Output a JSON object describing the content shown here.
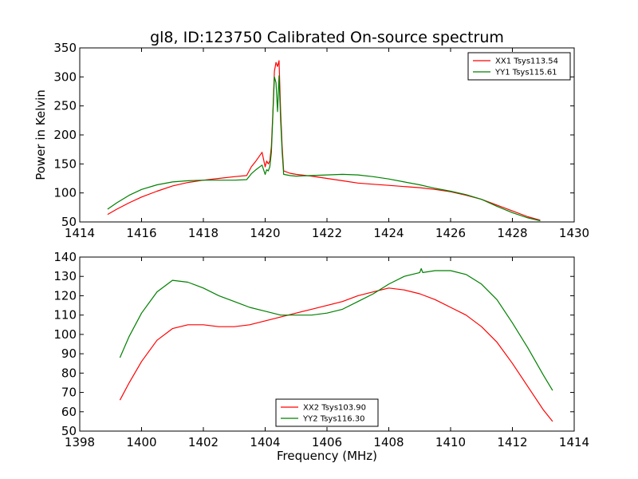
{
  "chart_data": [
    {
      "type": "line",
      "title": "gl8, ID:123750 Calibrated On-source spectrum",
      "xlabel": "",
      "ylabel": "Power in Kelvin",
      "xlim": [
        1414,
        1430
      ],
      "ylim": [
        50,
        350
      ],
      "xticks": [
        1414,
        1416,
        1418,
        1420,
        1422,
        1424,
        1426,
        1428,
        1430
      ],
      "yticks": [
        50,
        100,
        150,
        200,
        250,
        300,
        350
      ],
      "legend_position": "top-right",
      "series": [
        {
          "name": "XX1 Tsys113.54",
          "color": "#ff0000",
          "x": [
            1414.9,
            1415.2,
            1415.6,
            1416.0,
            1416.5,
            1417.0,
            1417.5,
            1418.0,
            1418.5,
            1419.0,
            1419.4,
            1419.55,
            1419.7,
            1419.9,
            1420.0,
            1420.05,
            1420.1,
            1420.15,
            1420.2,
            1420.25,
            1420.3,
            1420.35,
            1420.4,
            1420.45,
            1420.5,
            1420.55,
            1420.6,
            1420.8,
            1421.0,
            1421.5,
            1422.0,
            1422.5,
            1423.0,
            1423.5,
            1424.0,
            1424.5,
            1425.0,
            1425.5,
            1426.0,
            1426.5,
            1427.0,
            1427.5,
            1428.0,
            1428.5,
            1428.9
          ],
          "y": [
            63,
            72,
            83,
            93,
            103,
            112,
            118,
            122,
            125,
            128,
            130,
            145,
            155,
            170,
            145,
            155,
            150,
            155,
            180,
            240,
            310,
            325,
            318,
            328,
            240,
            180,
            138,
            134,
            132,
            129,
            125,
            121,
            117,
            115,
            113,
            111,
            109,
            106,
            102,
            96,
            89,
            79,
            69,
            59,
            53
          ]
        },
        {
          "name": "YY1 Tsys115.61",
          "color": "#008000",
          "x": [
            1414.9,
            1415.2,
            1415.6,
            1416.0,
            1416.5,
            1417.0,
            1417.5,
            1418.0,
            1418.5,
            1419.0,
            1419.4,
            1419.55,
            1419.7,
            1419.9,
            1420.0,
            1420.05,
            1420.1,
            1420.15,
            1420.2,
            1420.25,
            1420.3,
            1420.35,
            1420.4,
            1420.45,
            1420.5,
            1420.55,
            1420.6,
            1420.8,
            1421.0,
            1421.5,
            1422.0,
            1422.5,
            1423.0,
            1423.5,
            1424.0,
            1424.5,
            1425.0,
            1425.5,
            1426.0,
            1426.5,
            1427.0,
            1427.5,
            1428.0,
            1428.5,
            1428.9
          ],
          "y": [
            72,
            83,
            96,
            106,
            114,
            119,
            121,
            122,
            122,
            122,
            123,
            133,
            140,
            148,
            132,
            140,
            138,
            145,
            170,
            235,
            300,
            290,
            240,
            302,
            225,
            170,
            132,
            130,
            129,
            130,
            131,
            132,
            131,
            128,
            124,
            119,
            114,
            108,
            103,
            97,
            89,
            77,
            66,
            57,
            52
          ]
        }
      ]
    },
    {
      "type": "line",
      "title": "",
      "xlabel": "Frequency (MHz)",
      "ylabel": "",
      "xlim": [
        1398,
        1414
      ],
      "ylim": [
        50,
        140
      ],
      "xticks": [
        1398,
        1400,
        1402,
        1404,
        1406,
        1408,
        1410,
        1412,
        1414
      ],
      "yticks": [
        50,
        60,
        70,
        80,
        90,
        100,
        110,
        120,
        130,
        140
      ],
      "legend_position": "lower-center",
      "series": [
        {
          "name": "XX2 Tsys103.90",
          "color": "#ff0000",
          "x": [
            1399.3,
            1399.6,
            1400.0,
            1400.5,
            1401.0,
            1401.5,
            1402.0,
            1402.5,
            1403.0,
            1403.5,
            1404.0,
            1404.5,
            1405.0,
            1405.5,
            1406.0,
            1406.5,
            1407.0,
            1407.5,
            1408.0,
            1408.5,
            1409.0,
            1409.5,
            1410.0,
            1410.5,
            1411.0,
            1411.5,
            1412.0,
            1412.5,
            1413.0,
            1413.3
          ],
          "y": [
            66,
            75,
            86,
            97,
            103,
            105,
            105,
            104,
            104,
            105,
            107,
            109,
            111,
            113,
            115,
            117,
            120,
            122,
            124,
            123,
            121,
            118,
            114,
            110,
            104,
            96,
            85,
            73,
            61,
            55
          ]
        },
        {
          "name": "YY2 Tsys116.30",
          "color": "#008000",
          "x": [
            1399.3,
            1399.6,
            1400.0,
            1400.5,
            1401.0,
            1401.5,
            1402.0,
            1402.5,
            1403.0,
            1403.5,
            1404.0,
            1404.5,
            1405.0,
            1405.5,
            1406.0,
            1406.5,
            1407.0,
            1407.5,
            1408.0,
            1408.5,
            1409.0,
            1409.05,
            1409.1,
            1409.5,
            1410.0,
            1410.5,
            1411.0,
            1411.5,
            1412.0,
            1412.5,
            1413.0,
            1413.3
          ],
          "y": [
            88,
            99,
            111,
            122,
            128,
            127,
            124,
            120,
            117,
            114,
            112,
            110,
            110,
            110,
            111,
            113,
            117,
            121,
            126,
            130,
            132,
            134,
            132,
            133,
            133,
            131,
            126,
            118,
            106,
            93,
            79,
            71
          ]
        }
      ]
    }
  ]
}
